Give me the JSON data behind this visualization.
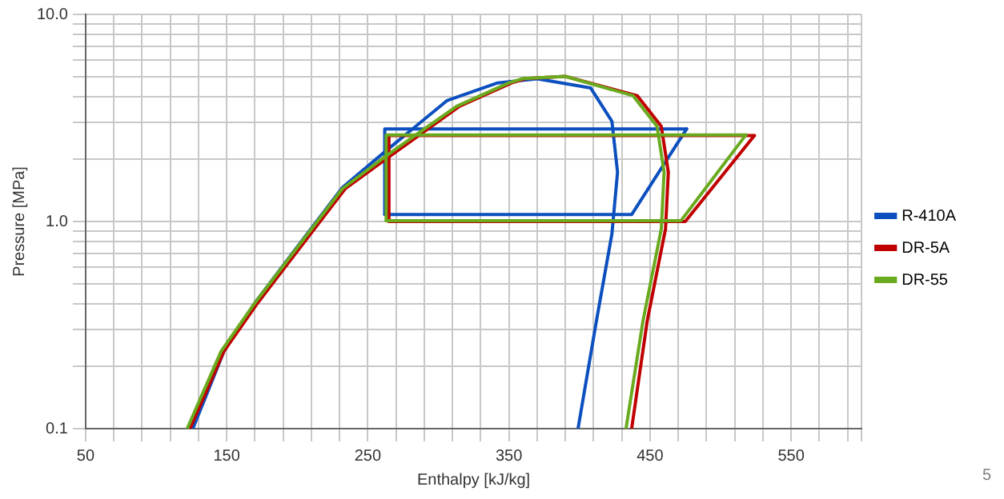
{
  "chart_data": {
    "type": "line",
    "xlabel": "Enthalpy [kJ/kg]",
    "ylabel": "Pressure [MPa]",
    "log": "y",
    "grid": true,
    "legend": "right",
    "marker": "none",
    "line_style": "solid",
    "xlim": [
      50,
      600
    ],
    "ylim": [
      0.1,
      10
    ],
    "xticks": [
      50,
      {
        "value": 70,
        "label": null
      },
      {
        "value": 90,
        "label": null
      },
      {
        "value": 110,
        "label": null
      },
      {
        "value": 130,
        "label": null
      },
      150,
      {
        "value": 170,
        "label": null
      },
      {
        "value": 190,
        "label": null
      },
      {
        "value": 210,
        "label": null
      },
      {
        "value": 230,
        "label": null
      },
      250,
      {
        "value": 270,
        "label": null
      },
      {
        "value": 290,
        "label": null
      },
      {
        "value": 310,
        "label": null
      },
      {
        "value": 330,
        "label": null
      },
      350,
      {
        "value": 370,
        "label": null
      },
      {
        "value": 390,
        "label": null
      },
      {
        "value": 410,
        "label": null
      },
      {
        "value": 430,
        "label": null
      },
      450,
      {
        "value": 470,
        "label": null
      },
      {
        "value": 490,
        "label": null
      },
      {
        "value": 510,
        "label": null
      },
      {
        "value": 530,
        "label": null
      },
      550,
      {
        "value": 570,
        "label": null
      },
      {
        "value": 590,
        "label": null
      },
      {
        "value": 600,
        "label": null
      }
    ],
    "yticks": [
      0.1,
      {
        "value": 0.2,
        "label": null
      },
      {
        "value": 0.3,
        "label": null
      },
      {
        "value": 0.4,
        "label": null
      },
      {
        "value": 0.5,
        "label": null
      },
      {
        "value": 0.6,
        "label": null
      },
      {
        "value": 0.7,
        "label": null
      },
      {
        "value": 0.8,
        "label": null
      },
      {
        "value": 0.9,
        "label": null
      },
      {
        "value": 1,
        "label": "1.0"
      },
      {
        "value": 2,
        "label": null
      },
      {
        "value": 3,
        "label": null
      },
      {
        "value": 4,
        "label": null
      },
      {
        "value": 5,
        "label": null
      },
      {
        "value": 6,
        "label": null
      },
      {
        "value": 7,
        "label": null
      },
      {
        "value": 8,
        "label": null
      },
      {
        "value": 9,
        "label": null
      },
      {
        "value": 10,
        "label": "10.0"
      }
    ],
    "series": [
      {
        "color": "#0c4fbf",
        "x": [
          126,
          148,
          170,
          196,
          232,
          262,
          306,
          342,
          370,
          408,
          423,
          427,
          423,
          412,
          399
        ],
        "values": [
          0.1,
          0.236,
          0.405,
          0.695,
          1.46,
          2.17,
          3.83,
          4.67,
          4.89,
          4.41,
          3.05,
          1.73,
          0.87,
          0.33,
          0.1
        ]
      },
      {
        "name": "R-410A",
        "color": "#0c4fbf",
        "x": [
          262,
          262,
          476
        ],
        "values": [
          1.08,
          2.8,
          2.8
        ]
      },
      {
        "color": "#0c4fbf",
        "x": [
          262,
          437,
          476
        ],
        "values": [
          1.08,
          1.08,
          2.8
        ]
      },
      {
        "color": "#c00000",
        "x": [
          124,
          148,
          172,
          198,
          234,
          267,
          315,
          352,
          362,
          390,
          441,
          458,
          463,
          461,
          448,
          437
        ],
        "values": [
          0.1,
          0.236,
          0.405,
          0.69,
          1.44,
          2.1,
          3.6,
          4.67,
          4.9,
          5.02,
          4.05,
          2.88,
          1.73,
          0.92,
          0.33,
          0.1
        ]
      },
      {
        "name": "DR-5A",
        "color": "#c00000",
        "x": [
          265,
          265,
          524
        ],
        "values": [
          1.0,
          2.6,
          2.6
        ]
      },
      {
        "color": "#c00000",
        "x": [
          265,
          475,
          524
        ],
        "values": [
          1.0,
          1.0,
          2.6
        ]
      },
      {
        "color": "#6aaa1e",
        "x": [
          122,
          146,
          170,
          196,
          232,
          264,
          313,
          350,
          360,
          390,
          438,
          455,
          460,
          458,
          445,
          433
        ],
        "values": [
          0.1,
          0.236,
          0.405,
          0.69,
          1.44,
          2.1,
          3.6,
          4.67,
          4.9,
          5.02,
          4.05,
          2.88,
          1.73,
          0.92,
          0.33,
          0.1
        ]
      },
      {
        "name": "DR-55",
        "color": "#6aaa1e",
        "x": [
          263,
          263,
          518
        ],
        "values": [
          1.01,
          2.62,
          2.62
        ]
      },
      {
        "color": "#6aaa1e",
        "x": [
          263,
          472,
          518
        ],
        "values": [
          1.01,
          1.01,
          2.62
        ]
      }
    ],
    "annotations": [
      "5"
    ]
  }
}
